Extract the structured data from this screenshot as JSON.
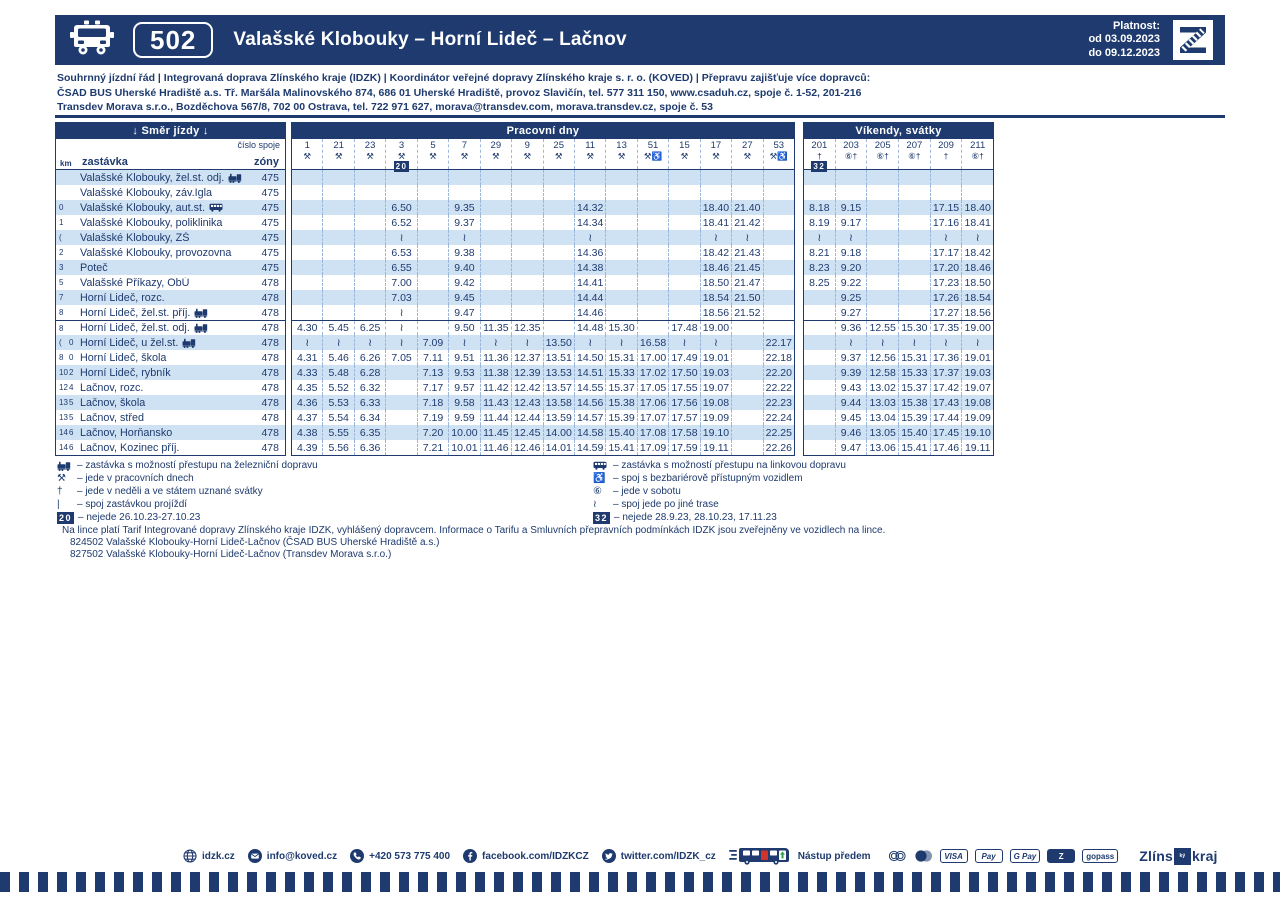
{
  "colors": {
    "navy": "#1e3a6e",
    "band": "#cfe2f4",
    "door_red": "#d0342c",
    "arrow_green": "#2f9e44"
  },
  "header": {
    "line_number": "502",
    "title": "Valašské Klobouky – Horní Lideč – Lačnov",
    "validity_label": "Platnost:",
    "valid_from": "od 03.09.2023",
    "valid_to": "do 09.12.2023"
  },
  "info_lines": [
    "Souhrnný jízdní řád | Integrovaná doprava Zlínského kraje (IDZK) | Koordinátor veřejné dopravy Zlínského kraje s. r. o. (KOVED) | Přepravu zajišťuje více dopravců:",
    "ČSAD BUS Uherské Hradiště a.s. Tř. Maršála Malinovského 874, 686 01 Uherské Hradiště, provoz Slavičín, tel. 577 311 150, www.csaduh.cz, spoje č. 1-52, 201-216",
    "Transdev Morava s.r.o., Bozděchova 567/8, 702 00 Ostrava, tel. 722 971 627, morava@transdev.com, morava.transdev.cz, spoje č. 53"
  ],
  "table": {
    "direction_label": "↓ Směr jízdy ↓",
    "cislo_spoje_label": "číslo spoje",
    "km_label": "km",
    "stop_label": "zastávka",
    "zone_label": "zóny",
    "workdays_label": "Pracovní dny",
    "weekend_label": "Víkendy, svátky",
    "workday_columns": [
      {
        "num": "1",
        "sym": "⚒"
      },
      {
        "num": "21",
        "sym": "⚒"
      },
      {
        "num": "23",
        "sym": "⚒"
      },
      {
        "num": "3",
        "sym": "⚒",
        "badge": "20"
      },
      {
        "num": "5",
        "sym": "⚒"
      },
      {
        "num": "7",
        "sym": "⚒"
      },
      {
        "num": "29",
        "sym": "⚒"
      },
      {
        "num": "9",
        "sym": "⚒"
      },
      {
        "num": "25",
        "sym": "⚒"
      },
      {
        "num": "11",
        "sym": "⚒"
      },
      {
        "num": "13",
        "sym": "⚒"
      },
      {
        "num": "51",
        "sym": "⚒♿"
      },
      {
        "num": "15",
        "sym": "⚒"
      },
      {
        "num": "17",
        "sym": "⚒"
      },
      {
        "num": "27",
        "sym": "⚒"
      },
      {
        "num": "53",
        "sym": "⚒♿"
      }
    ],
    "weekend_columns": [
      {
        "num": "201",
        "sym": "†",
        "badge": "32"
      },
      {
        "num": "203",
        "sym": "⑥†"
      },
      {
        "num": "205",
        "sym": "⑥†"
      },
      {
        "num": "207",
        "sym": "⑥†"
      },
      {
        "num": "209",
        "sym": "†"
      },
      {
        "num": "211",
        "sym": "⑥†"
      }
    ],
    "rows": [
      {
        "km": "",
        "km2": "",
        "stop": "Valašské Klobouky, žel.st. odj.",
        "icon": "train",
        "zone": "475",
        "wd": [
          "",
          "",
          "",
          "",
          "",
          "",
          "",
          "",
          "",
          "",
          "",
          "",
          "",
          "",
          "",
          ""
        ],
        "we": [
          "",
          "",
          "",
          "",
          "",
          ""
        ]
      },
      {
        "km": "",
        "km2": "",
        "stop": "Valašské Klobouky, záv.Igla",
        "icon": "",
        "zone": "475",
        "wd": [
          "",
          "",
          "",
          "",
          "",
          "",
          "",
          "",
          "",
          "",
          "",
          "",
          "",
          "",
          "",
          ""
        ],
        "we": [
          "",
          "",
          "",
          "",
          "",
          ""
        ]
      },
      {
        "km": "0",
        "km2": "",
        "stop": "Valašské Klobouky, aut.st.",
        "icon": "bus",
        "zone": "475",
        "wd": [
          "",
          "",
          "",
          "6.50",
          "",
          "9.35",
          "",
          "",
          "",
          "14.32",
          "",
          "",
          "",
          "18.40",
          "21.40",
          ""
        ],
        "we": [
          "8.18",
          "9.15",
          "",
          "",
          "17.15",
          "18.40"
        ]
      },
      {
        "km": "1",
        "km2": "",
        "stop": "Valašské Klobouky, poliklinika",
        "icon": "",
        "zone": "475",
        "wd": [
          "",
          "",
          "",
          "6.52",
          "",
          "9.37",
          "",
          "",
          "",
          "14.34",
          "",
          "",
          "",
          "18.41",
          "21.42",
          ""
        ],
        "we": [
          "8.19",
          "9.17",
          "",
          "",
          "17.16",
          "18.41"
        ]
      },
      {
        "km": "(",
        "km2": "",
        "stop": "Valašské Klobouky, ZŠ",
        "icon": "",
        "zone": "475",
        "wd": [
          "",
          "",
          "",
          "≀",
          "",
          "≀",
          "",
          "",
          "",
          "≀",
          "",
          "",
          "",
          "≀",
          "≀",
          ""
        ],
        "we": [
          "≀",
          "≀",
          "",
          "",
          "≀",
          "≀"
        ]
      },
      {
        "km": "2",
        "km2": "",
        "stop": "Valašské Klobouky, provozovna",
        "icon": "",
        "zone": "475",
        "wd": [
          "",
          "",
          "",
          "6.53",
          "",
          "9.38",
          "",
          "",
          "",
          "14.36",
          "",
          "",
          "",
          "18.42",
          "21.43",
          ""
        ],
        "we": [
          "8.21",
          "9.18",
          "",
          "",
          "17.17",
          "18.42"
        ]
      },
      {
        "km": "3",
        "km2": "",
        "stop": "Poteč",
        "icon": "",
        "zone": "475",
        "wd": [
          "",
          "",
          "",
          "6.55",
          "",
          "9.40",
          "",
          "",
          "",
          "14.38",
          "",
          "",
          "",
          "18.46",
          "21.45",
          ""
        ],
        "we": [
          "8.23",
          "9.20",
          "",
          "",
          "17.20",
          "18.46"
        ]
      },
      {
        "km": "5",
        "km2": "",
        "stop": "Valašské Příkazy, ObÚ",
        "icon": "",
        "zone": "478",
        "wd": [
          "",
          "",
          "",
          "7.00",
          "",
          "9.42",
          "",
          "",
          "",
          "14.41",
          "",
          "",
          "",
          "18.50",
          "21.47",
          ""
        ],
        "we": [
          "8.25",
          "9.22",
          "",
          "",
          "17.23",
          "18.50"
        ]
      },
      {
        "km": "7",
        "km2": "",
        "stop": "Horní Lideč, rozc.",
        "icon": "",
        "zone": "478",
        "wd": [
          "",
          "",
          "",
          "7.03",
          "",
          "9.45",
          "",
          "",
          "",
          "14.44",
          "",
          "",
          "",
          "18.54",
          "21.50",
          ""
        ],
        "we": [
          "",
          "9.25",
          "",
          "",
          "17.26",
          "18.54"
        ]
      },
      {
        "km": "8",
        "km2": "",
        "stop": "Horní Lideč, žel.st. příj.",
        "icon": "train",
        "zone": "478",
        "wd": [
          "",
          "",
          "",
          "≀",
          "",
          "9.47",
          "",
          "",
          "",
          "14.46",
          "",
          "",
          "",
          "18.56",
          "21.52",
          ""
        ],
        "we": [
          "",
          "9.27",
          "",
          "",
          "17.27",
          "18.56"
        ]
      },
      {
        "km": "8",
        "km2": "",
        "stop": "Horní Lideč, žel.st. odj.",
        "icon": "train",
        "zone": "478",
        "wd": [
          "4.30",
          "5.45",
          "6.25",
          "≀",
          "",
          "9.50",
          "11.35",
          "12.35",
          "",
          "14.48",
          "15.30",
          "",
          "17.48",
          "19.00",
          "",
          ""
        ],
        "we": [
          "",
          "9.36",
          "12.55",
          "15.30",
          "17.35",
          "19.00"
        ]
      },
      {
        "km": "(",
        "km2": "0",
        "stop": "Horní Lideč, u žel.st.",
        "icon": "train",
        "zone": "478",
        "wd": [
          "≀",
          "≀",
          "≀",
          "≀",
          "7.09",
          "≀",
          "≀",
          "≀",
          "13.50",
          "≀",
          "≀",
          "16.58",
          "≀",
          "≀",
          "",
          "22.17"
        ],
        "we": [
          "",
          "≀",
          "≀",
          "≀",
          "≀",
          "≀"
        ]
      },
      {
        "km": "8",
        "km2": "0",
        "stop": "Horní Lideč, škola",
        "icon": "",
        "zone": "478",
        "wd": [
          "4.31",
          "5.46",
          "6.26",
          "7.05",
          "7.11",
          "9.51",
          "11.36",
          "12.37",
          "13.51",
          "14.50",
          "15.31",
          "17.00",
          "17.49",
          "19.01",
          "",
          "22.18"
        ],
        "we": [
          "",
          "9.37",
          "12.56",
          "15.31",
          "17.36",
          "19.01"
        ]
      },
      {
        "km": "10",
        "km2": "2",
        "stop": "Horní Lideč, rybník",
        "icon": "",
        "zone": "478",
        "wd": [
          "4.33",
          "5.48",
          "6.28",
          "",
          "7.13",
          "9.53",
          "11.38",
          "12.39",
          "13.53",
          "14.51",
          "15.33",
          "17.02",
          "17.50",
          "19.03",
          "",
          "22.20"
        ],
        "we": [
          "",
          "9.39",
          "12.58",
          "15.33",
          "17.37",
          "19.03"
        ]
      },
      {
        "km": "12",
        "km2": "4",
        "stop": "Lačnov, rozc.",
        "icon": "",
        "zone": "478",
        "wd": [
          "4.35",
          "5.52",
          "6.32",
          "",
          "7.17",
          "9.57",
          "11.42",
          "12.42",
          "13.57",
          "14.55",
          "15.37",
          "17.05",
          "17.55",
          "19.07",
          "",
          "22.22"
        ],
        "we": [
          "",
          "9.43",
          "13.02",
          "15.37",
          "17.42",
          "19.07"
        ]
      },
      {
        "km": "13",
        "km2": "5",
        "stop": "Lačnov, škola",
        "icon": "",
        "zone": "478",
        "wd": [
          "4.36",
          "5.53",
          "6.33",
          "",
          "7.18",
          "9.58",
          "11.43",
          "12.43",
          "13.58",
          "14.56",
          "15.38",
          "17.06",
          "17.56",
          "19.08",
          "",
          "22.23"
        ],
        "we": [
          "",
          "9.44",
          "13.03",
          "15.38",
          "17.43",
          "19.08"
        ]
      },
      {
        "km": "13",
        "km2": "5",
        "stop": "Lačnov, střed",
        "icon": "",
        "zone": "478",
        "wd": [
          "4.37",
          "5.54",
          "6.34",
          "",
          "7.19",
          "9.59",
          "11.44",
          "12.44",
          "13.59",
          "14.57",
          "15.39",
          "17.07",
          "17.57",
          "19.09",
          "",
          "22.24"
        ],
        "we": [
          "",
          "9.45",
          "13.04",
          "15.39",
          "17.44",
          "19.09"
        ]
      },
      {
        "km": "14",
        "km2": "6",
        "stop": "Lačnov, Horňansko",
        "icon": "",
        "zone": "478",
        "wd": [
          "4.38",
          "5.55",
          "6.35",
          "",
          "7.20",
          "10.00",
          "11.45",
          "12.45",
          "14.00",
          "14.58",
          "15.40",
          "17.08",
          "17.58",
          "19.10",
          "",
          "22.25"
        ],
        "we": [
          "",
          "9.46",
          "13.05",
          "15.40",
          "17.45",
          "19.10"
        ]
      },
      {
        "km": "14",
        "km2": "6",
        "stop": "Lačnov, Kozinec příj.",
        "icon": "",
        "zone": "478",
        "wd": [
          "4.39",
          "5.56",
          "6.36",
          "",
          "7.21",
          "10.01",
          "11.46",
          "12.46",
          "14.01",
          "14.59",
          "15.41",
          "17.09",
          "17.59",
          "19.11",
          "",
          "22.26"
        ],
        "we": [
          "",
          "9.47",
          "13.06",
          "15.41",
          "17.46",
          "19.11"
        ]
      }
    ]
  },
  "legend": {
    "left": [
      {
        "icon": "train",
        "text": "– zastávka s možností přestupu na železniční dopravu"
      },
      {
        "glyph": "⚒",
        "text": "– jede v pracovních dnech"
      },
      {
        "glyph": "†",
        "text": "– jede v neděli a ve státem uznané svátky"
      },
      {
        "glyph": "|",
        "text": "– spoj zastávkou projíždí"
      },
      {
        "badge": "20",
        "text": "– nejede 26.10.23-27.10.23"
      }
    ],
    "right": [
      {
        "icon": "bus",
        "text": "– zastávka s možností přestupu na linkovou dopravu"
      },
      {
        "glyph": "♿",
        "text": "– spoj s bezbariérově přístupným vozidlem"
      },
      {
        "glyph": "⑥",
        "text": "– jede v sobotu"
      },
      {
        "glyph": "≀",
        "text": "– spoj jede po jiné trase"
      },
      {
        "badge": "32",
        "text": "– nejede 28.9.23, 28.10.23, 17.11.23"
      }
    ]
  },
  "tariff_lines": [
    "Na lince platí Tarif Integrované dopravy Zlínského kraje IDZK, vyhlášený dopravcem. Informace o Tarifu a Smluvních přepravních podmínkách IDZK jsou zveřejněny ve vozidlech na lince.",
    "824502 Valašské Klobouky-Horní Lideč-Lačnov (ČSAD BUS Uherské Hradiště a.s.)",
    "827502 Valašské Klobouky-Horní Lideč-Lačnov (Transdev Morava s.r.o.)"
  ],
  "footer": {
    "contacts": [
      {
        "icon": "globe",
        "label": "idzk.cz"
      },
      {
        "icon": "mail",
        "label": "info@koved.cz"
      },
      {
        "icon": "phone",
        "label": "+420 573 775 400"
      },
      {
        "icon": "facebook",
        "label": "facebook.com/IDZKCZ"
      },
      {
        "icon": "twitter",
        "label": "twitter.com/IDZK_cz"
      }
    ],
    "boarding_label": "Nástup předem",
    "payments": [
      {
        "name": "cash-icon",
        "label": ""
      },
      {
        "name": "mastercard-icon",
        "label": ""
      },
      {
        "name": "visa-badge",
        "label": "VISA"
      },
      {
        "name": "apple-pay-badge",
        "label": "Pay"
      },
      {
        "name": "google-pay-badge",
        "label": "G Pay"
      },
      {
        "name": "z-card-badge",
        "label": "Z"
      },
      {
        "name": "gopass-badge",
        "label": "gopass"
      }
    ],
    "brand": {
      "pre": "Zlíns",
      "mid": "ký",
      "post": "kraj"
    }
  }
}
